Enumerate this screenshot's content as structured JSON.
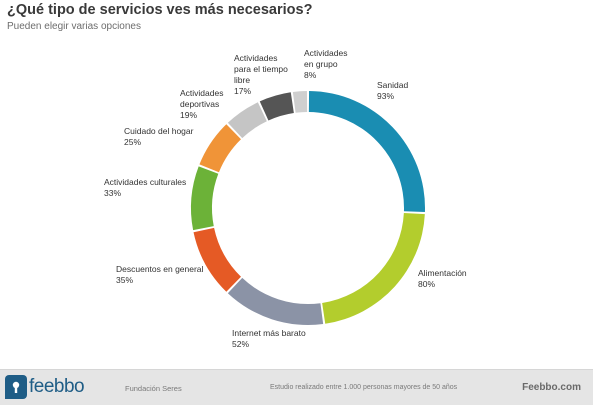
{
  "header": {
    "title": "¿Qué tipo de servicios ves más necesarios?",
    "subtitle": "Pueden elegir varias opciones"
  },
  "chart_data": {
    "type": "pie",
    "title": "¿Qué tipo de servicios ves más necesarios?",
    "subtitle": "Pueden elegir varias opciones",
    "unit": "%",
    "categories": [
      "Sanidad",
      "Alimentación",
      "Internet más barato",
      "Descuentos en general",
      "Actividades culturales",
      "Cuidado del hogar",
      "Actividades deportivas",
      "Actividades para el tiempo libre",
      "Actividades en grupo"
    ],
    "values": [
      93,
      80,
      52,
      35,
      33,
      25,
      19,
      17,
      8
    ],
    "value_labels": [
      "93%",
      "80%",
      "52%",
      "35%",
      "33%",
      "25%",
      "19%",
      "17%",
      "8%"
    ],
    "colors": [
      "#1a8db2",
      "#b3cd2d",
      "#8b93a6",
      "#e55a25",
      "#6cb238",
      "#f09438",
      "#c5c5c5",
      "#555555",
      "#cfcfcf"
    ],
    "label_lines": [
      [
        "Sanidad"
      ],
      [
        "Alimentación"
      ],
      [
        "Internet más barato"
      ],
      [
        "Descuentos en general"
      ],
      [
        "Actividades culturales"
      ],
      [
        "Cuidado del hogar"
      ],
      [
        "Actividades",
        "deportivas"
      ],
      [
        "Actividades",
        "para el tiempo",
        "libre"
      ],
      [
        "Actividades",
        "en grupo"
      ]
    ],
    "legend": "none"
  },
  "footer": {
    "logo_text": "feebbo",
    "organization": "Fundación Seres",
    "study_note": "Estudio realizado entre 1.000 personas mayores de 50 años",
    "site": "Feebbo.com"
  }
}
